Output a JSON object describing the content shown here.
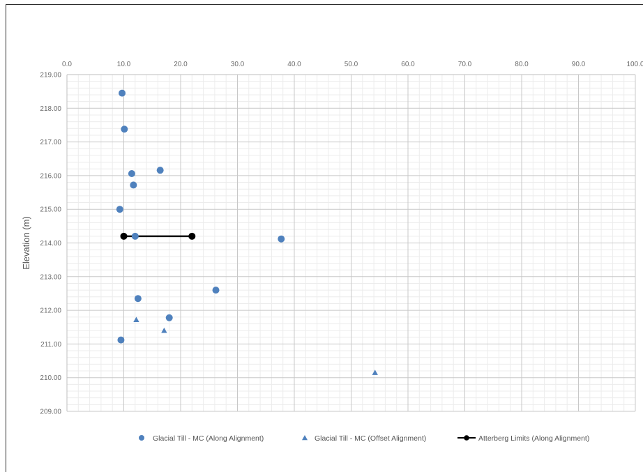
{
  "chart_data": {
    "type": "scatter",
    "title": "",
    "xlabel": "",
    "ylabel": "Elevation (m)",
    "xlim": [
      0,
      100
    ],
    "ylim": [
      209,
      219
    ],
    "x_axis_position": "top",
    "x_ticks": [
      0,
      10,
      20,
      30,
      40,
      50,
      60,
      70,
      80,
      90,
      100
    ],
    "y_ticks": [
      209,
      210,
      211,
      212,
      213,
      214,
      215,
      216,
      217,
      218,
      219
    ],
    "x_tick_labels": [
      "0.0",
      "10.0",
      "20.0",
      "30.0",
      "40.0",
      "50.0",
      "60.0",
      "70.0",
      "80.0",
      "90.0",
      "100.0"
    ],
    "y_tick_labels": [
      "209.00",
      "210.00",
      "211.00",
      "212.00",
      "213.00",
      "214.00",
      "215.00",
      "216.00",
      "217.00",
      "218.00",
      "219.00"
    ],
    "grid": "major and minor",
    "legend_position": "bottom",
    "series": [
      {
        "name": "Glacial Till - MC (Along Alignment)",
        "marker": "circle",
        "color": "#4f81bd",
        "x": [
          9.7,
          10.1,
          11.4,
          16.4,
          11.7,
          9.3,
          12.0,
          37.7,
          26.2,
          12.5,
          18.0,
          9.5
        ],
        "y": [
          218.45,
          217.38,
          216.06,
          216.16,
          215.72,
          215.0,
          214.2,
          214.12,
          212.6,
          212.35,
          211.78,
          211.12
        ]
      },
      {
        "name": "Glacial Till - MC (Offset Alignment)",
        "marker": "triangle",
        "color": "#4f81bd",
        "x": [
          12.2,
          17.1,
          54.2
        ],
        "y": [
          211.72,
          211.4,
          210.15
        ]
      },
      {
        "name": "Atterberg Limits (Along Alignment)",
        "marker": "circle-line",
        "color": "#000000",
        "x": [
          10.0,
          22.0
        ],
        "y": [
          214.2,
          214.2
        ]
      }
    ]
  }
}
